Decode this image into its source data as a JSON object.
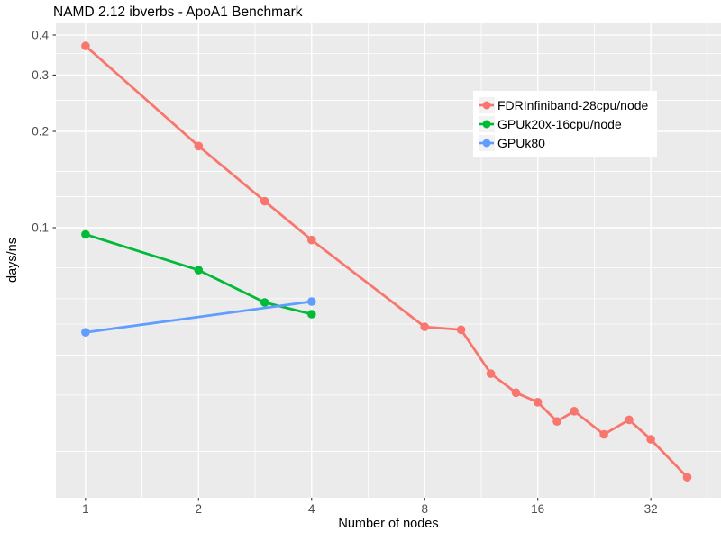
{
  "chart": {
    "title": "NAMD 2.12 ibverbs - ApoA1 Benchmark",
    "xlabel": "Number of nodes",
    "ylabel": "days/ns"
  },
  "chart_data": {
    "type": "line",
    "title": "NAMD 2.12 ibverbs - ApoA1 Benchmark",
    "xlabel": "Number of nodes",
    "ylabel": "days/ns",
    "log_x": true,
    "log_y": true,
    "grid": true,
    "panel_bg": "#EBEBEB",
    "grid_color": "#FFFFFF",
    "tick_color": "#333333",
    "tick_label_color": "#4D4D4D",
    "x_range": [
      0.834,
      49.2
    ],
    "y_range": [
      0.01432,
      0.4352
    ],
    "x_ticks": [
      1,
      2,
      4,
      8,
      16,
      32
    ],
    "x_tick_labels": [
      "1",
      "2",
      "4",
      "8",
      "16",
      "32"
    ],
    "x_minor": [
      1.414,
      2.828,
      5.657,
      11.314,
      22.627,
      45.255
    ],
    "y_ticks": [
      0.4,
      0.3,
      0.2,
      0.1
    ],
    "y_tick_labels": [
      "0.4",
      "0.3",
      "0.2",
      "0.1"
    ],
    "y_minor": [
      0.35,
      0.25,
      0.15,
      0.125,
      0.075,
      0.06,
      0.05,
      0.04,
      0.03,
      0.02
    ],
    "legend_position": "inside-top-right",
    "series": [
      {
        "name": "FDRInfiniband-28cpu/node",
        "color": "#F8766D",
        "x": [
          1,
          2,
          3,
          4,
          8,
          10,
          12,
          14,
          16,
          18,
          20,
          24,
          28,
          32,
          40
        ],
        "y": [
          0.37,
          0.18,
          0.121,
          0.0915,
          0.049,
          0.048,
          0.035,
          0.0305,
          0.0285,
          0.0248,
          0.0267,
          0.0226,
          0.0251,
          0.0218,
          0.0166
        ]
      },
      {
        "name": "GPUk20x-16cpu/node",
        "color": "#00BA38",
        "x": [
          1,
          2,
          3,
          4
        ],
        "y": [
          0.0953,
          0.0737,
          0.0584,
          0.0537
        ]
      },
      {
        "name": "GPUk80",
        "color": "#619CFF",
        "x": [
          1,
          4
        ],
        "y": [
          0.0471,
          0.0588
        ]
      }
    ]
  }
}
